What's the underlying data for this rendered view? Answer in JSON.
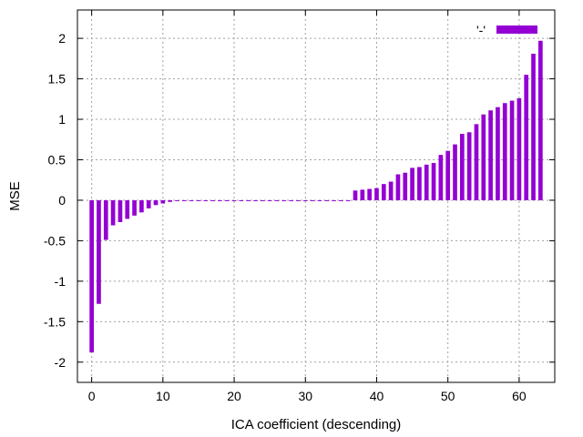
{
  "chart_data": {
    "type": "bar",
    "title": "",
    "xlabel": "ICA coefficient (descending)",
    "ylabel": "MSE",
    "xlim": [
      -2,
      65
    ],
    "ylim": [
      -2.25,
      2.35
    ],
    "xticks": [
      "0",
      "10",
      "20",
      "30",
      "40",
      "50",
      "60"
    ],
    "yticks": [
      "-2",
      "-1.5",
      "-1",
      "-0.5",
      "0",
      "0.5",
      "1",
      "1.5",
      "2"
    ],
    "grid": true,
    "legend_position": "top-right",
    "series": [
      {
        "name": "'-'",
        "color": "#9400d3",
        "x": [
          0,
          1,
          2,
          3,
          4,
          5,
          6,
          7,
          8,
          9,
          10,
          11,
          12,
          13,
          14,
          15,
          16,
          17,
          18,
          19,
          20,
          21,
          22,
          23,
          24,
          25,
          26,
          27,
          28,
          29,
          30,
          31,
          32,
          33,
          34,
          35,
          36,
          37,
          38,
          39,
          40,
          41,
          42,
          43,
          44,
          45,
          46,
          47,
          48,
          49,
          50,
          51,
          52,
          53,
          54,
          55,
          56,
          57,
          58,
          59,
          60,
          61,
          62,
          63
        ],
        "values": [
          -1.88,
          -1.28,
          -0.49,
          -0.31,
          -0.27,
          -0.23,
          -0.19,
          -0.15,
          -0.1,
          -0.06,
          -0.04,
          -0.02,
          -0.01,
          -0.01,
          -0.01,
          -0.01,
          -0.01,
          -0.01,
          -0.01,
          -0.01,
          -0.01,
          -0.01,
          -0.01,
          -0.01,
          -0.01,
          -0.01,
          -0.01,
          -0.01,
          -0.01,
          -0.01,
          -0.01,
          -0.01,
          -0.01,
          -0.01,
          -0.01,
          -0.01,
          -0.01,
          0.12,
          0.13,
          0.14,
          0.15,
          0.2,
          0.23,
          0.32,
          0.34,
          0.4,
          0.41,
          0.44,
          0.46,
          0.56,
          0.61,
          0.69,
          0.82,
          0.84,
          0.94,
          1.06,
          1.11,
          1.15,
          1.2,
          1.23,
          1.26,
          1.55,
          1.81,
          1.97
        ]
      }
    ]
  }
}
